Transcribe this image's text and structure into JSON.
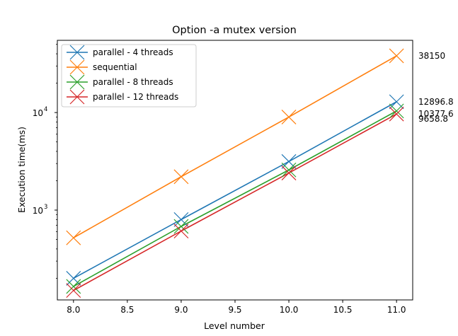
{
  "chart_data": {
    "type": "line",
    "title": "Option -a mutex version",
    "xlabel": "Level number",
    "ylabel": "Execution time(ms)",
    "xlim": [
      7.85,
      11.15
    ],
    "ylim": [
      120,
      55000
    ],
    "yscale": "log",
    "grid": false,
    "legend_position": "top-left",
    "x_ticks": [
      8.0,
      8.5,
      9.0,
      9.5,
      10.0,
      10.5,
      11.0
    ],
    "x_tick_labels": [
      "8.0",
      "8.5",
      "9.0",
      "9.5",
      "10.0",
      "10.5",
      "11.0"
    ],
    "y_ticks": [
      1000,
      10000
    ],
    "y_tick_bases": [
      "10",
      "10"
    ],
    "y_tick_exps": [
      "3",
      "4"
    ],
    "x": [
      8,
      9,
      10,
      11
    ],
    "marker": "x",
    "series": [
      {
        "name": "parallel - 4 threads",
        "color": "#1f77b4",
        "values": [
          200,
          800,
          3150,
          12896.8
        ]
      },
      {
        "name": "sequential",
        "color": "#ff7f0e",
        "values": [
          520,
          2200,
          9000,
          38150
        ]
      },
      {
        "name": "parallel - 8 threads",
        "color": "#2ca02c",
        "values": [
          165,
          680,
          2580,
          10377.6
        ]
      },
      {
        "name": "parallel - 12 threads",
        "color": "#d62728",
        "values": [
          150,
          610,
          2400,
          9658.8
        ]
      }
    ],
    "annotations": [
      {
        "text": "38150",
        "value": 38150
      },
      {
        "text": "12896.8",
        "value": 12896.8
      },
      {
        "text": "10377.6",
        "value": 10377.6
      },
      {
        "text": "9658.8",
        "value": 9658.8
      }
    ]
  }
}
